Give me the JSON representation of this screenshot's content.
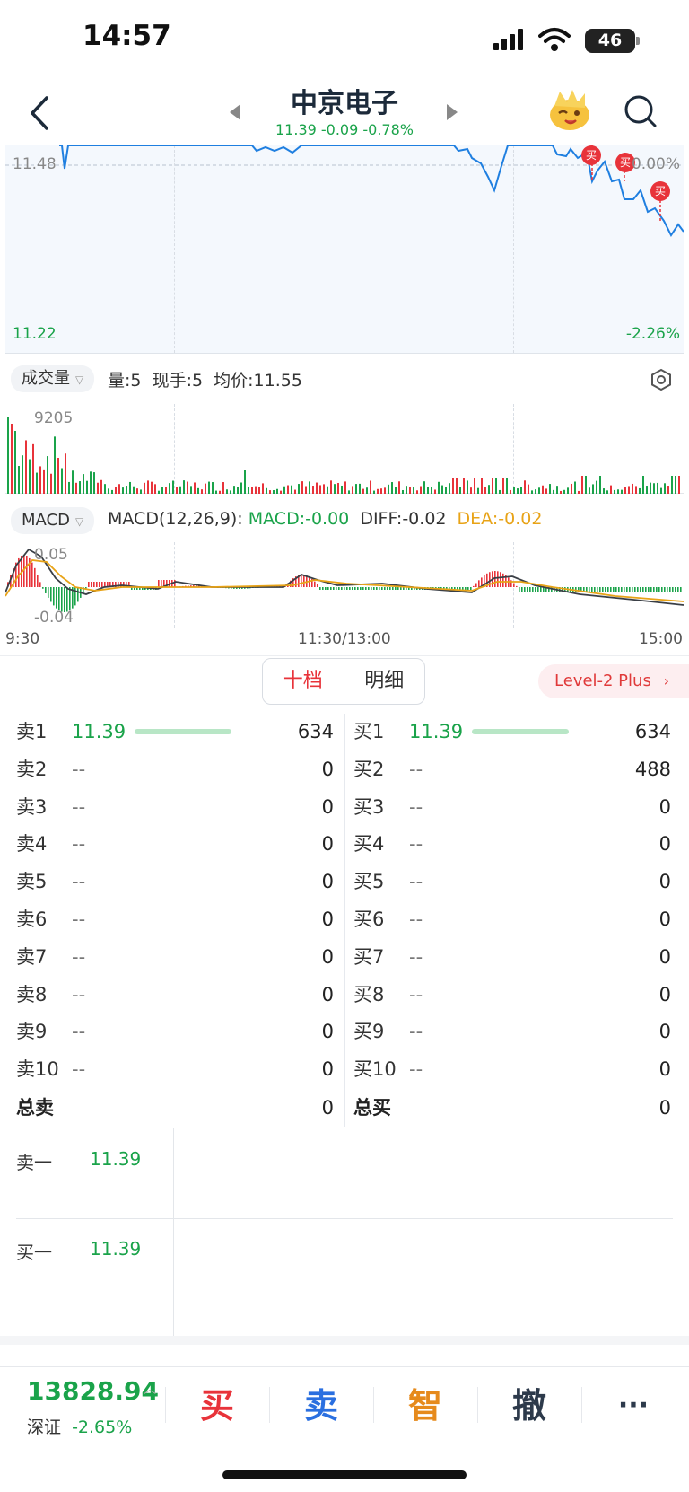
{
  "status_bar": {
    "time": "14:57",
    "battery": "46"
  },
  "header": {
    "stock_name": "中京电子",
    "quote": "11.39 -0.09 -0.78%"
  },
  "price_chart": {
    "y_top_left": "11.48",
    "y_top_right": "0.00%",
    "y_bottom_left": "11.22",
    "y_bottom_right": "-2.26%",
    "trade_markers": [
      "买",
      "买",
      "买"
    ]
  },
  "volume": {
    "selector": "成交量",
    "stats": "量:5  现手:5  均价:11.55",
    "max_label": "9205"
  },
  "macd": {
    "selector": "MACD",
    "params": "MACD(12,26,9):",
    "macd": "MACD:-0.00",
    "diff": "DIFF:-0.02",
    "dea": "DEA:-0.02",
    "y_top": "0.05",
    "y_bottom": "-0.04"
  },
  "time_axis": [
    "9:30",
    "11:30/13:00",
    "15:00"
  ],
  "tabs": {
    "ten_levels": "十档",
    "detail": "明细",
    "level2": "Level-2 Plus"
  },
  "colors": {
    "up": "#e8333a",
    "down": "#1aa34a",
    "line": "#1f7fe0",
    "dea": "#e8a317"
  },
  "order_book": {
    "sell": [
      {
        "label": "卖1",
        "price": "11.39",
        "volume": "634"
      },
      {
        "label": "卖2",
        "price": "--",
        "volume": "0"
      },
      {
        "label": "卖3",
        "price": "--",
        "volume": "0"
      },
      {
        "label": "卖4",
        "price": "--",
        "volume": "0"
      },
      {
        "label": "卖5",
        "price": "--",
        "volume": "0"
      },
      {
        "label": "卖6",
        "price": "--",
        "volume": "0"
      },
      {
        "label": "卖7",
        "price": "--",
        "volume": "0"
      },
      {
        "label": "卖8",
        "price": "--",
        "volume": "0"
      },
      {
        "label": "卖9",
        "price": "--",
        "volume": "0"
      },
      {
        "label": "卖10",
        "price": "--",
        "volume": "0"
      }
    ],
    "buy": [
      {
        "label": "买1",
        "price": "11.39",
        "volume": "634"
      },
      {
        "label": "买2",
        "price": "--",
        "volume": "488"
      },
      {
        "label": "买3",
        "price": "--",
        "volume": "0"
      },
      {
        "label": "买4",
        "price": "--",
        "volume": "0"
      },
      {
        "label": "买5",
        "price": "--",
        "volume": "0"
      },
      {
        "label": "买6",
        "price": "--",
        "volume": "0"
      },
      {
        "label": "买7",
        "price": "--",
        "volume": "0"
      },
      {
        "label": "买8",
        "price": "--",
        "volume": "0"
      },
      {
        "label": "买9",
        "price": "--",
        "volume": "0"
      },
      {
        "label": "买10",
        "price": "--",
        "volume": "0"
      }
    ],
    "total_sell_label": "总卖",
    "total_sell": "0",
    "total_buy_label": "总买",
    "total_buy": "0"
  },
  "detail": {
    "sell_one_label": "卖一",
    "sell_one_price": "11.39",
    "buy_one_label": "买一",
    "buy_one_price": "11.39"
  },
  "bottom_bar": {
    "index_value": "13828.94",
    "index_name": "深证",
    "index_change": "-2.65%",
    "buy": "买",
    "sell": "卖",
    "smart": "智",
    "cancel": "撤",
    "more": "···"
  }
}
